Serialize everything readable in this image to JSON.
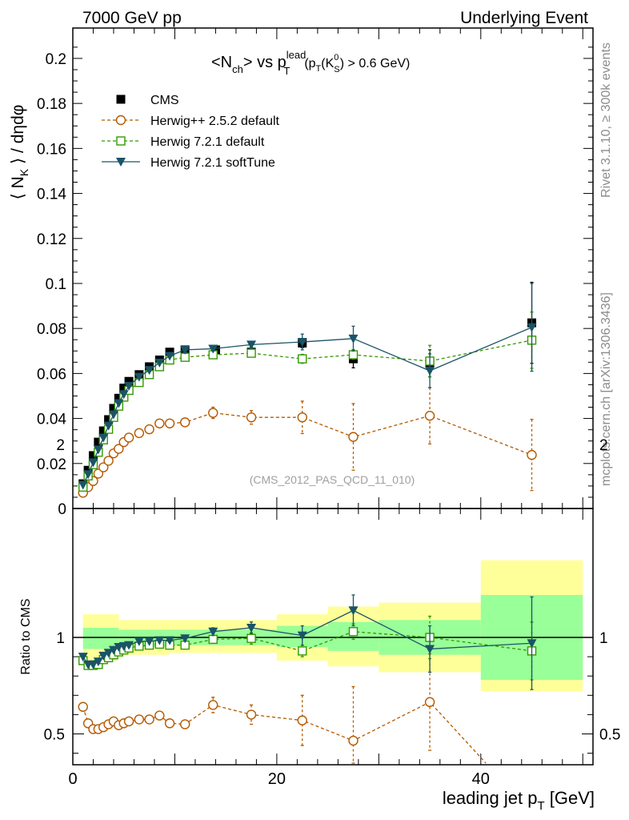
{
  "header": {
    "energy_label": "7000 GeV pp",
    "process_label": "Underlying Event"
  },
  "side_labels": {
    "rivet": "Rivet 3.1.10, ≥ 300k events",
    "mcplots": "mcplots.cern.ch [arXiv:1306.3436]"
  },
  "chart_data": [
    {
      "type": "scatter",
      "panel": "main",
      "title": {
        "left": "<N",
        "left_sub": "ch",
        "mid": "> vs p",
        "mid_sup": "lead",
        "mid_sub": "T",
        "cut_pre": "(p",
        "cut_pt_sub": "T",
        "cut_k": "(K",
        "cut_k_sup": "0",
        "cut_k_sub": "S",
        "cut_post": ") > 0.6 GeV)"
      },
      "ylabel": {
        "pre": "⟨ N",
        "sub": "K",
        "post": " ⟩ / dηdφ"
      },
      "analysis_tag": "(CMS_2012_PAS_QCD_11_010)",
      "xlim": [
        0,
        51
      ],
      "ylim": [
        0,
        0.2135
      ],
      "y_ticks": [
        "0",
        "0.02",
        "0.04",
        "0.06",
        "0.08",
        "0.1",
        "0.12",
        "0.14",
        "0.16",
        "0.18",
        "0.2"
      ],
      "legend_position": "top-left",
      "series": [
        {
          "name": "CMS",
          "color": "#000000",
          "marker": "filled-square",
          "x": [
            1.0,
            1.5,
            2.0,
            2.5,
            3.0,
            3.5,
            4.0,
            4.5,
            5.0,
            5.5,
            6.5,
            7.5,
            8.5,
            9.5,
            11.0,
            14.0,
            17.5,
            22.5,
            27.5,
            35.0,
            45.0
          ],
          "y": [
            0.011,
            0.017,
            0.0235,
            0.0295,
            0.0345,
            0.0395,
            0.0445,
            0.049,
            0.0535,
            0.0565,
            0.0595,
            0.063,
            0.066,
            0.0695,
            0.0705,
            0.0705,
            0.0695,
            0.0735,
            0.0665,
            0.0645,
            0.0825
          ],
          "err": [
            0.001,
            0.001,
            0.001,
            0.001,
            0.001,
            0.001,
            0.001,
            0.001,
            0.001,
            0.001,
            0.001,
            0.001,
            0.001,
            0.001,
            0.001,
            0.0015,
            0.002,
            0.002,
            0.004,
            0.006,
            0.018
          ]
        },
        {
          "name": "Herwig++ 2.5.2 default",
          "color": "#b35900",
          "marker": "open-circle",
          "line": "dashed",
          "x": [
            1.0,
            1.5,
            2.0,
            2.5,
            3.0,
            3.5,
            4.0,
            4.5,
            5.0,
            5.5,
            6.5,
            7.5,
            8.5,
            9.5,
            11.0,
            13.75,
            17.5,
            22.5,
            27.5,
            35.0,
            45.0
          ],
          "y": [
            0.007,
            0.0095,
            0.0122,
            0.0155,
            0.0183,
            0.0212,
            0.0245,
            0.0265,
            0.0295,
            0.0315,
            0.0335,
            0.0352,
            0.0378,
            0.0378,
            0.0383,
            0.0425,
            0.0405,
            0.0405,
            0.0318,
            0.0412,
            0.0238
          ],
          "err": [
            0.0005,
            0.0005,
            0.0005,
            0.0005,
            0.0005,
            0.0005,
            0.0005,
            0.0005,
            0.0005,
            0.0005,
            0.0005,
            0.0005,
            0.0008,
            0.0008,
            0.001,
            0.0025,
            0.003,
            0.0072,
            0.0148,
            0.0125,
            0.0158
          ]
        },
        {
          "name": "Herwig 7.2.1 default",
          "color": "#339900",
          "marker": "open-square",
          "line": "dashed",
          "x": [
            1.0,
            1.5,
            2.0,
            2.5,
            3.0,
            3.5,
            4.0,
            4.5,
            5.0,
            5.5,
            6.5,
            7.5,
            8.5,
            9.5,
            11.0,
            13.75,
            17.5,
            22.5,
            27.5,
            35.0,
            45.0
          ],
          "y": [
            0.0095,
            0.0145,
            0.0195,
            0.025,
            0.0305,
            0.0352,
            0.0405,
            0.0455,
            0.0495,
            0.0525,
            0.056,
            0.0595,
            0.063,
            0.066,
            0.0672,
            0.0683,
            0.069,
            0.0665,
            0.0683,
            0.0655,
            0.0748
          ],
          "err": [
            0.0005,
            0.0005,
            0.0005,
            0.0005,
            0.0005,
            0.0005,
            0.0005,
            0.0005,
            0.0005,
            0.0005,
            0.0005,
            0.0005,
            0.0005,
            0.0005,
            0.001,
            0.001,
            0.0015,
            0.002,
            0.002,
            0.007,
            0.0125
          ]
        },
        {
          "name": "Herwig 7.2.1 softTune",
          "color": "#1a5466",
          "marker": "filled-triangle-down",
          "line": "solid",
          "x": [
            1.0,
            1.5,
            2.0,
            2.5,
            3.0,
            3.5,
            4.0,
            4.5,
            5.0,
            5.5,
            6.5,
            7.5,
            8.5,
            9.5,
            11.0,
            13.75,
            17.5,
            22.5,
            27.5,
            35.0,
            45.0
          ],
          "y": [
            0.0105,
            0.0152,
            0.0205,
            0.0262,
            0.0315,
            0.0368,
            0.0418,
            0.0468,
            0.0508,
            0.0545,
            0.0585,
            0.0615,
            0.0648,
            0.0678,
            0.0705,
            0.071,
            0.0728,
            0.074,
            0.0755,
            0.0612,
            0.0805
          ],
          "err": [
            0.0005,
            0.0005,
            0.0005,
            0.0005,
            0.0005,
            0.0005,
            0.0005,
            0.0005,
            0.0005,
            0.0005,
            0.0005,
            0.0005,
            0.0005,
            0.0005,
            0.001,
            0.001,
            0.0015,
            0.0035,
            0.0055,
            0.0075,
            0.0195
          ]
        }
      ]
    },
    {
      "type": "scatter",
      "panel": "ratio",
      "ylabel": "Ratio to CMS",
      "xlabel": {
        "pre": "leading jet p",
        "sub": "T",
        "post": " [GeV]"
      },
      "xlim": [
        0,
        51
      ],
      "ylim": [
        0.35,
        2.25
      ],
      "y_tick_labels": [
        "0.5",
        "1",
        "2"
      ],
      "x_tick_labels": [
        "0",
        "20",
        "40"
      ],
      "bands": {
        "x_edges": [
          1,
          4.5,
          9.5,
          20,
          25,
          30,
          40,
          50
        ],
        "inner": [
          [
            0.94,
            1.05
          ],
          [
            0.95,
            1.04
          ],
          [
            0.96,
            1.04
          ],
          [
            0.95,
            1.06
          ],
          [
            0.93,
            1.08
          ],
          [
            0.91,
            1.09
          ],
          [
            0.78,
            1.22
          ]
        ],
        "outer": [
          [
            0.88,
            1.12
          ],
          [
            0.91,
            1.09
          ],
          [
            0.92,
            1.09
          ],
          [
            0.88,
            1.12
          ],
          [
            0.85,
            1.16
          ],
          [
            0.82,
            1.18
          ],
          [
            0.72,
            1.4
          ]
        ]
      },
      "series": [
        {
          "name": "Herwig++ 2.5.2 default",
          "color": "#b35900",
          "marker": "open-circle",
          "line": "dashed",
          "x": [
            1.0,
            1.5,
            2.0,
            2.5,
            3.0,
            3.5,
            4.0,
            4.5,
            5.0,
            5.5,
            6.5,
            7.5,
            8.5,
            9.5,
            11.0,
            13.75,
            17.5,
            22.5,
            27.5,
            35.0,
            40.5
          ],
          "y": [
            0.64,
            0.555,
            0.525,
            0.525,
            0.535,
            0.55,
            0.565,
            0.545,
            0.555,
            0.565,
            0.575,
            0.575,
            0.595,
            0.555,
            0.55,
            0.65,
            0.6,
            0.57,
            0.465,
            0.665,
            0.34
          ],
          "err": [
            0.01,
            0.01,
            0.01,
            0.01,
            0.01,
            0.01,
            0.01,
            0.01,
            0.01,
            0.01,
            0.01,
            0.01,
            0.015,
            0.02,
            0.02,
            0.04,
            0.05,
            0.13,
            0.28,
            0.25,
            0.0
          ]
        },
        {
          "name": "Herwig 7.2.1 default",
          "color": "#339900",
          "marker": "open-square",
          "line": "dashed",
          "x": [
            1.0,
            1.5,
            2.0,
            2.5,
            3.0,
            3.5,
            4.0,
            4.5,
            5.0,
            5.5,
            6.5,
            7.5,
            8.5,
            9.5,
            11.0,
            13.75,
            17.5,
            22.5,
            27.5,
            35.0,
            45.0
          ],
          "y": [
            0.88,
            0.855,
            0.855,
            0.86,
            0.885,
            0.895,
            0.91,
            0.925,
            0.935,
            0.945,
            0.955,
            0.96,
            0.965,
            0.96,
            0.96,
            0.99,
            0.995,
            0.93,
            1.03,
            1.0,
            0.93
          ],
          "err": [
            0.01,
            0.01,
            0.01,
            0.01,
            0.01,
            0.01,
            0.01,
            0.01,
            0.01,
            0.01,
            0.01,
            0.01,
            0.01,
            0.01,
            0.015,
            0.02,
            0.03,
            0.03,
            0.04,
            0.11,
            0.15
          ]
        },
        {
          "name": "Herwig 7.2.1 softTune",
          "color": "#1a5466",
          "marker": "filled-triangle-down",
          "line": "solid",
          "x": [
            1.0,
            1.5,
            2.0,
            2.5,
            3.0,
            3.5,
            4.0,
            4.5,
            5.0,
            5.5,
            6.5,
            7.5,
            8.5,
            9.5,
            11.0,
            13.75,
            17.5,
            22.5,
            27.5,
            35.0,
            45.0
          ],
          "y": [
            0.9,
            0.86,
            0.86,
            0.875,
            0.905,
            0.92,
            0.935,
            0.95,
            0.955,
            0.96,
            0.98,
            0.98,
            0.985,
            0.985,
            0.995,
            1.03,
            1.05,
            1.01,
            1.14,
            0.94,
            0.97
          ],
          "err": [
            0.01,
            0.01,
            0.01,
            0.01,
            0.01,
            0.01,
            0.01,
            0.01,
            0.01,
            0.01,
            0.01,
            0.01,
            0.01,
            0.01,
            0.015,
            0.02,
            0.03,
            0.05,
            0.08,
            0.12,
            0.24
          ]
        }
      ]
    }
  ]
}
